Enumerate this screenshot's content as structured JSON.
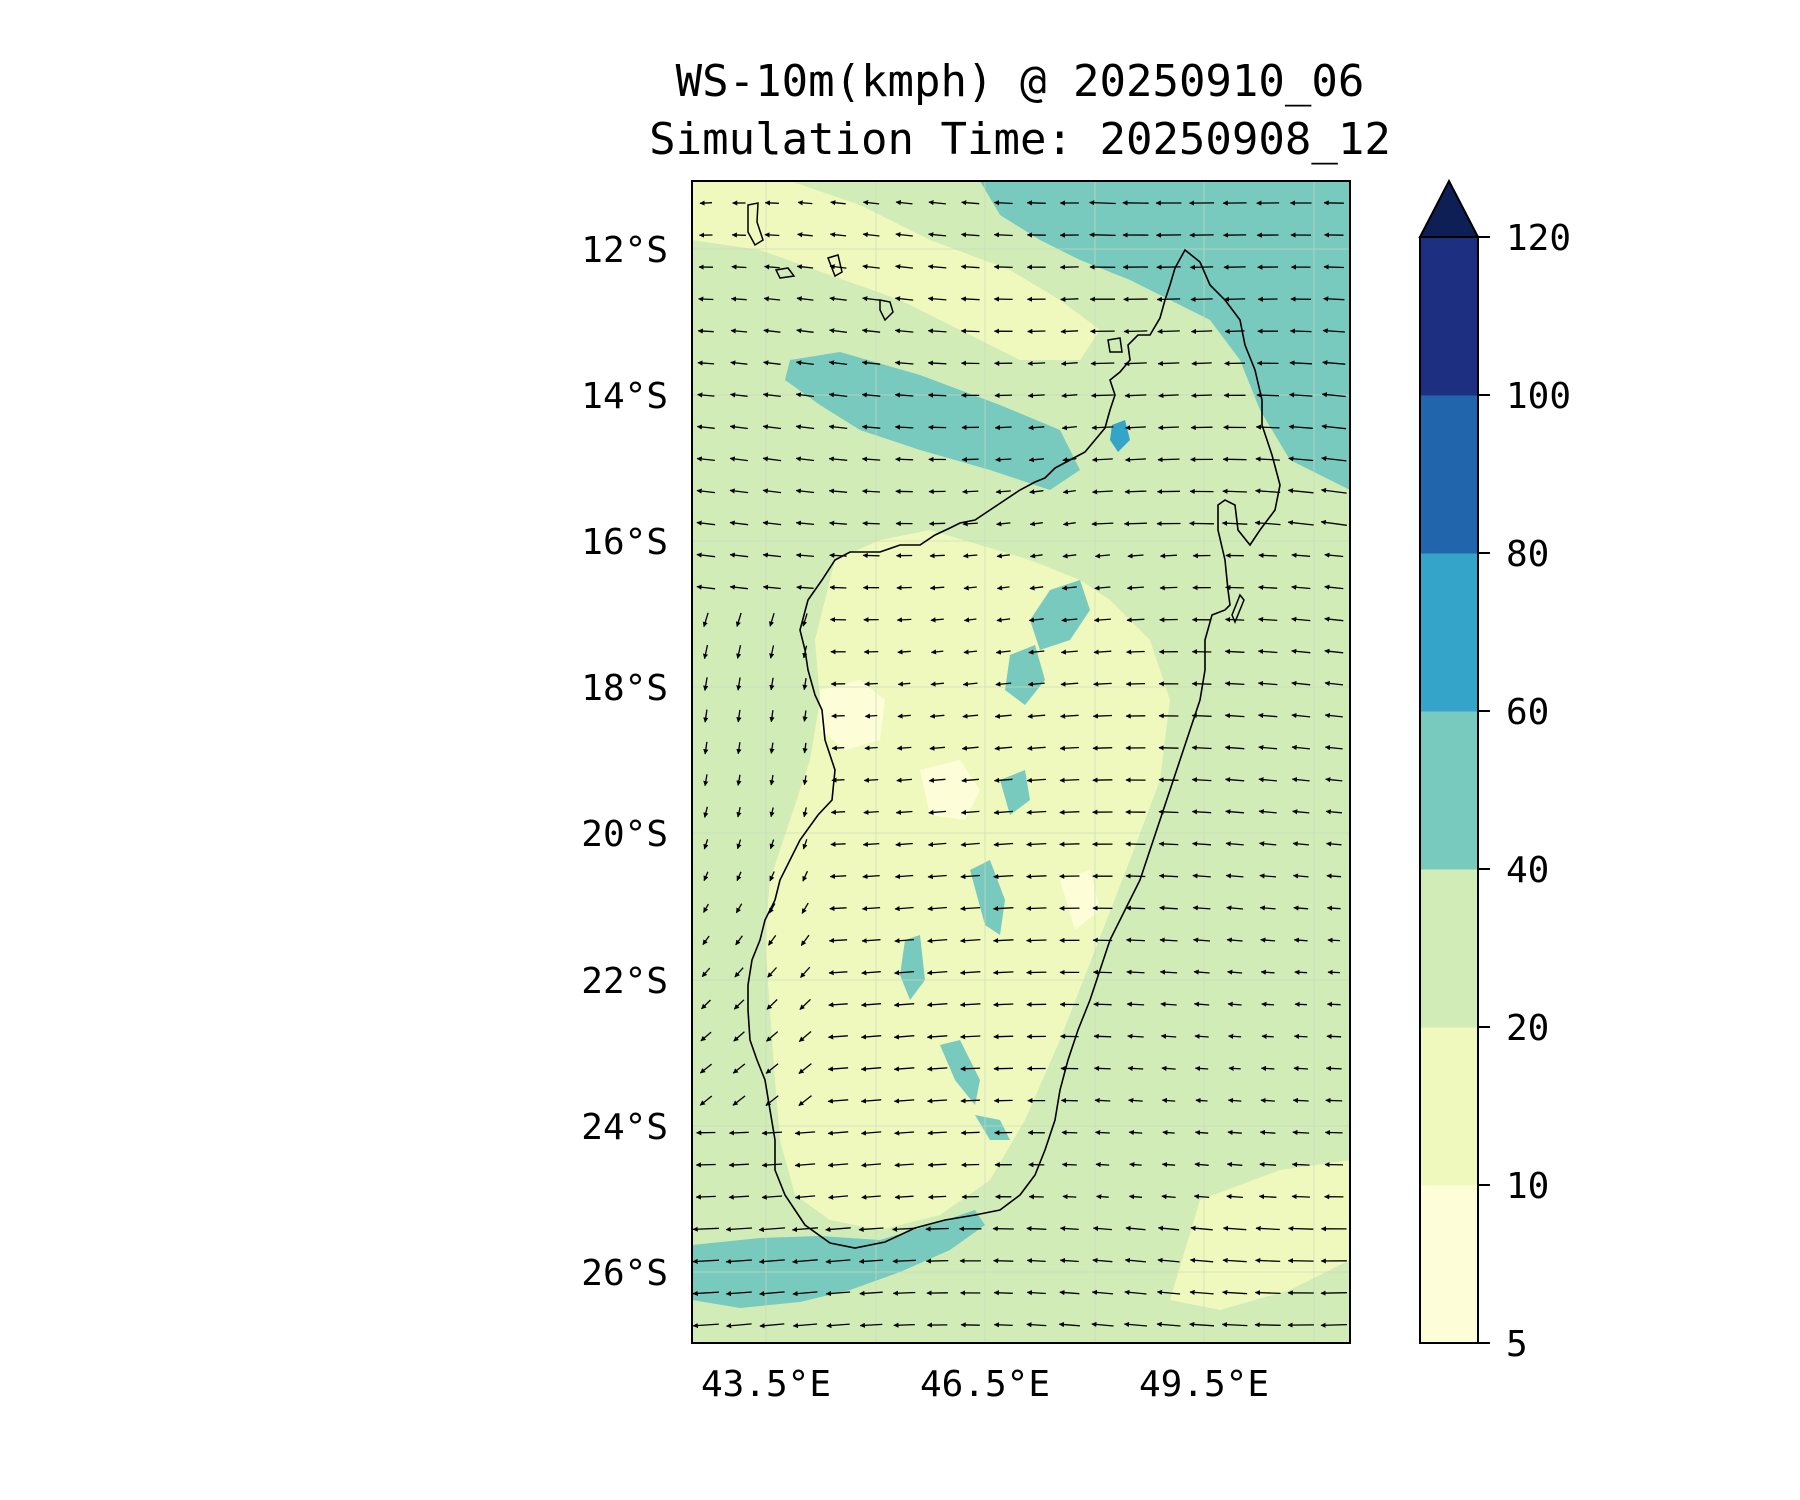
{
  "title_line1": "WS-10m(kmph) @ 20250910_06",
  "title_line2": "Simulation Time: 20250908_12",
  "map": {
    "lon_range": [
      42.5,
      51.5
    ],
    "lat_range": [
      -27.0,
      -11.1
    ],
    "lat_ticks": [
      {
        "value": -12,
        "label": "12°S"
      },
      {
        "value": -14,
        "label": "14°S"
      },
      {
        "value": -16,
        "label": "16°S"
      },
      {
        "value": -18,
        "label": "18°S"
      },
      {
        "value": -20,
        "label": "20°S"
      },
      {
        "value": -22,
        "label": "22°S"
      },
      {
        "value": -24,
        "label": "24°S"
      },
      {
        "value": -26,
        "label": "26°S"
      }
    ],
    "lon_ticks": [
      {
        "value": 43.5,
        "label": "43.5°E"
      },
      {
        "value": 46.5,
        "label": "46.5°E"
      },
      {
        "value": 49.5,
        "label": "49.5°E"
      }
    ],
    "background_color": "#d2ecb7",
    "coastline_color": "#000000"
  },
  "colorbar": {
    "levels": [
      {
        "value": 5,
        "label": "5"
      },
      {
        "value": 10,
        "label": "10"
      },
      {
        "value": 20,
        "label": "20"
      },
      {
        "value": 40,
        "label": "40"
      },
      {
        "value": 60,
        "label": "60"
      },
      {
        "value": 80,
        "label": "80"
      },
      {
        "value": 100,
        "label": "100"
      },
      {
        "value": 120,
        "label": "120"
      }
    ],
    "colors": [
      "#fdfed7",
      "#eff9bd",
      "#d2ecb7",
      "#78c9be",
      "#34a4c9",
      "#2166ad",
      "#1d2f80"
    ],
    "extend_color": "#0d1f55",
    "extend": "max"
  }
}
